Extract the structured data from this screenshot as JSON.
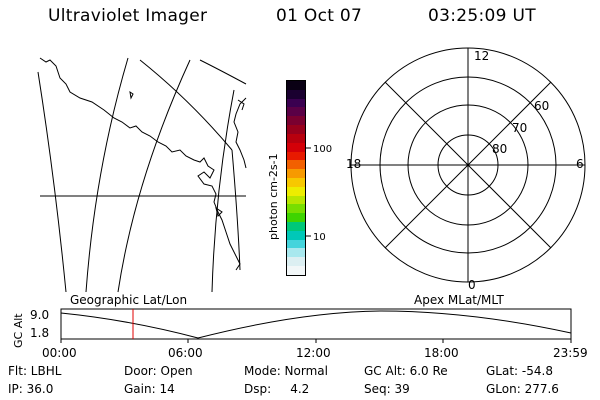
{
  "header": {
    "instrument": "Ultraviolet Imager",
    "date": "01 Oct 07",
    "time": "03:25:09 UT"
  },
  "colorbar": {
    "unit_label": "photon cm-2s-1",
    "tick_labels": [
      "100",
      "10"
    ],
    "colors": [
      "#0a0014",
      "#1a0030",
      "#3a0050",
      "#5a0046",
      "#7a0030",
      "#98001c",
      "#b8000e",
      "#d40008",
      "#e81a00",
      "#f26000",
      "#f79a00",
      "#f7c800",
      "#eded00",
      "#b8e600",
      "#78de00",
      "#3ed400",
      "#00c878",
      "#00c8b8",
      "#44d4dc",
      "#a8e8ee",
      "#dceff2",
      "#f2f7f8"
    ]
  },
  "polar_plot": {
    "lat_labels": [
      "80",
      "70",
      "60"
    ],
    "mlt_labels": {
      "top": "12",
      "left": "18",
      "right": "6",
      "bottom": "0"
    }
  },
  "timeline": {
    "left_label": "Geographic Lat/Lon",
    "right_label": "Apex MLat/MLT",
    "y_axis_label": "GC Alt",
    "y_ticks": [
      "9.0",
      "1.8"
    ],
    "x_ticks": [
      "00:00",
      "06:00",
      "12:00",
      "18:00",
      "23:59"
    ],
    "marker_color": "#e00000"
  },
  "info": {
    "filter": "Flt: LBHL",
    "ip": "IP: 36.0",
    "door": "Door: Open",
    "gain": "Gain: 14",
    "mode": "Mode: Normal",
    "dsp": "Dsp:     4.2",
    "gc_alt": "GC Alt: 6.0 Re",
    "seq": "Seq: 39",
    "glat": "GLat: -54.8",
    "glon": "GLon: 277.6"
  }
}
